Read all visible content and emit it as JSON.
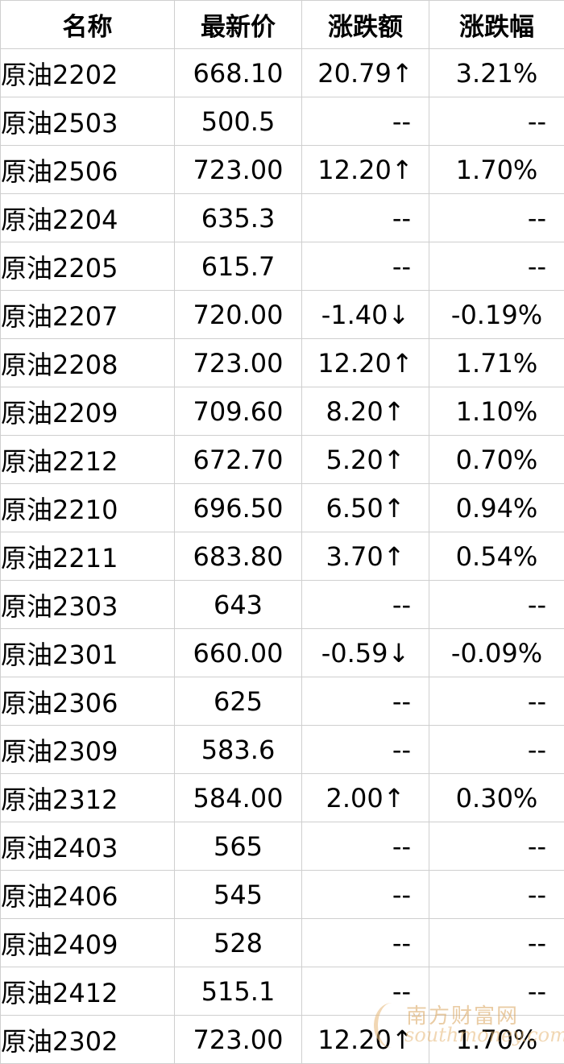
{
  "header": {
    "name": "名称",
    "price": "最新价",
    "change": "涨跌额",
    "pct": "涨跌幅"
  },
  "rows": [
    {
      "name": "原油2202",
      "price": "668.10",
      "change": "20.79↑",
      "pct": "3.21%"
    },
    {
      "name": "原油2503",
      "price": "500.5",
      "change": "--",
      "pct": "--"
    },
    {
      "name": "原油2506",
      "price": "723.00",
      "change": "12.20↑",
      "pct": "1.70%"
    },
    {
      "name": "原油2204",
      "price": "635.3",
      "change": "--",
      "pct": "--"
    },
    {
      "name": "原油2205",
      "price": "615.7",
      "change": "--",
      "pct": "--"
    },
    {
      "name": "原油2207",
      "price": "720.00",
      "change": "-1.40↓",
      "pct": "-0.19%"
    },
    {
      "name": "原油2208",
      "price": "723.00",
      "change": "12.20↑",
      "pct": "1.71%"
    },
    {
      "name": "原油2209",
      "price": "709.60",
      "change": "8.20↑",
      "pct": "1.10%"
    },
    {
      "name": "原油2212",
      "price": "672.70",
      "change": "5.20↑",
      "pct": "0.70%"
    },
    {
      "name": "原油2210",
      "price": "696.50",
      "change": "6.50↑",
      "pct": "0.94%"
    },
    {
      "name": "原油2211",
      "price": "683.80",
      "change": "3.70↑",
      "pct": "0.54%"
    },
    {
      "name": "原油2303",
      "price": "643",
      "change": "--",
      "pct": "--"
    },
    {
      "name": "原油2301",
      "price": "660.00",
      "change": "-0.59↓",
      "pct": "-0.09%"
    },
    {
      "name": "原油2306",
      "price": "625",
      "change": "--",
      "pct": "--"
    },
    {
      "name": "原油2309",
      "price": "583.6",
      "change": "--",
      "pct": "--"
    },
    {
      "name": "原油2312",
      "price": "584.00",
      "change": "2.00↑",
      "pct": "0.30%"
    },
    {
      "name": "原油2403",
      "price": "565",
      "change": "--",
      "pct": "--"
    },
    {
      "name": "原油2406",
      "price": "545",
      "change": "--",
      "pct": "--"
    },
    {
      "name": "原油2409",
      "price": "528",
      "change": "--",
      "pct": "--"
    },
    {
      "name": "原油2412",
      "price": "515.1",
      "change": "--",
      "pct": "--"
    },
    {
      "name": "原油2302",
      "price": "723.00",
      "change": "12.20↑",
      "pct": "1.70%"
    }
  ],
  "watermark": {
    "cn": "南方财富网",
    "en": "southmoney.com"
  }
}
